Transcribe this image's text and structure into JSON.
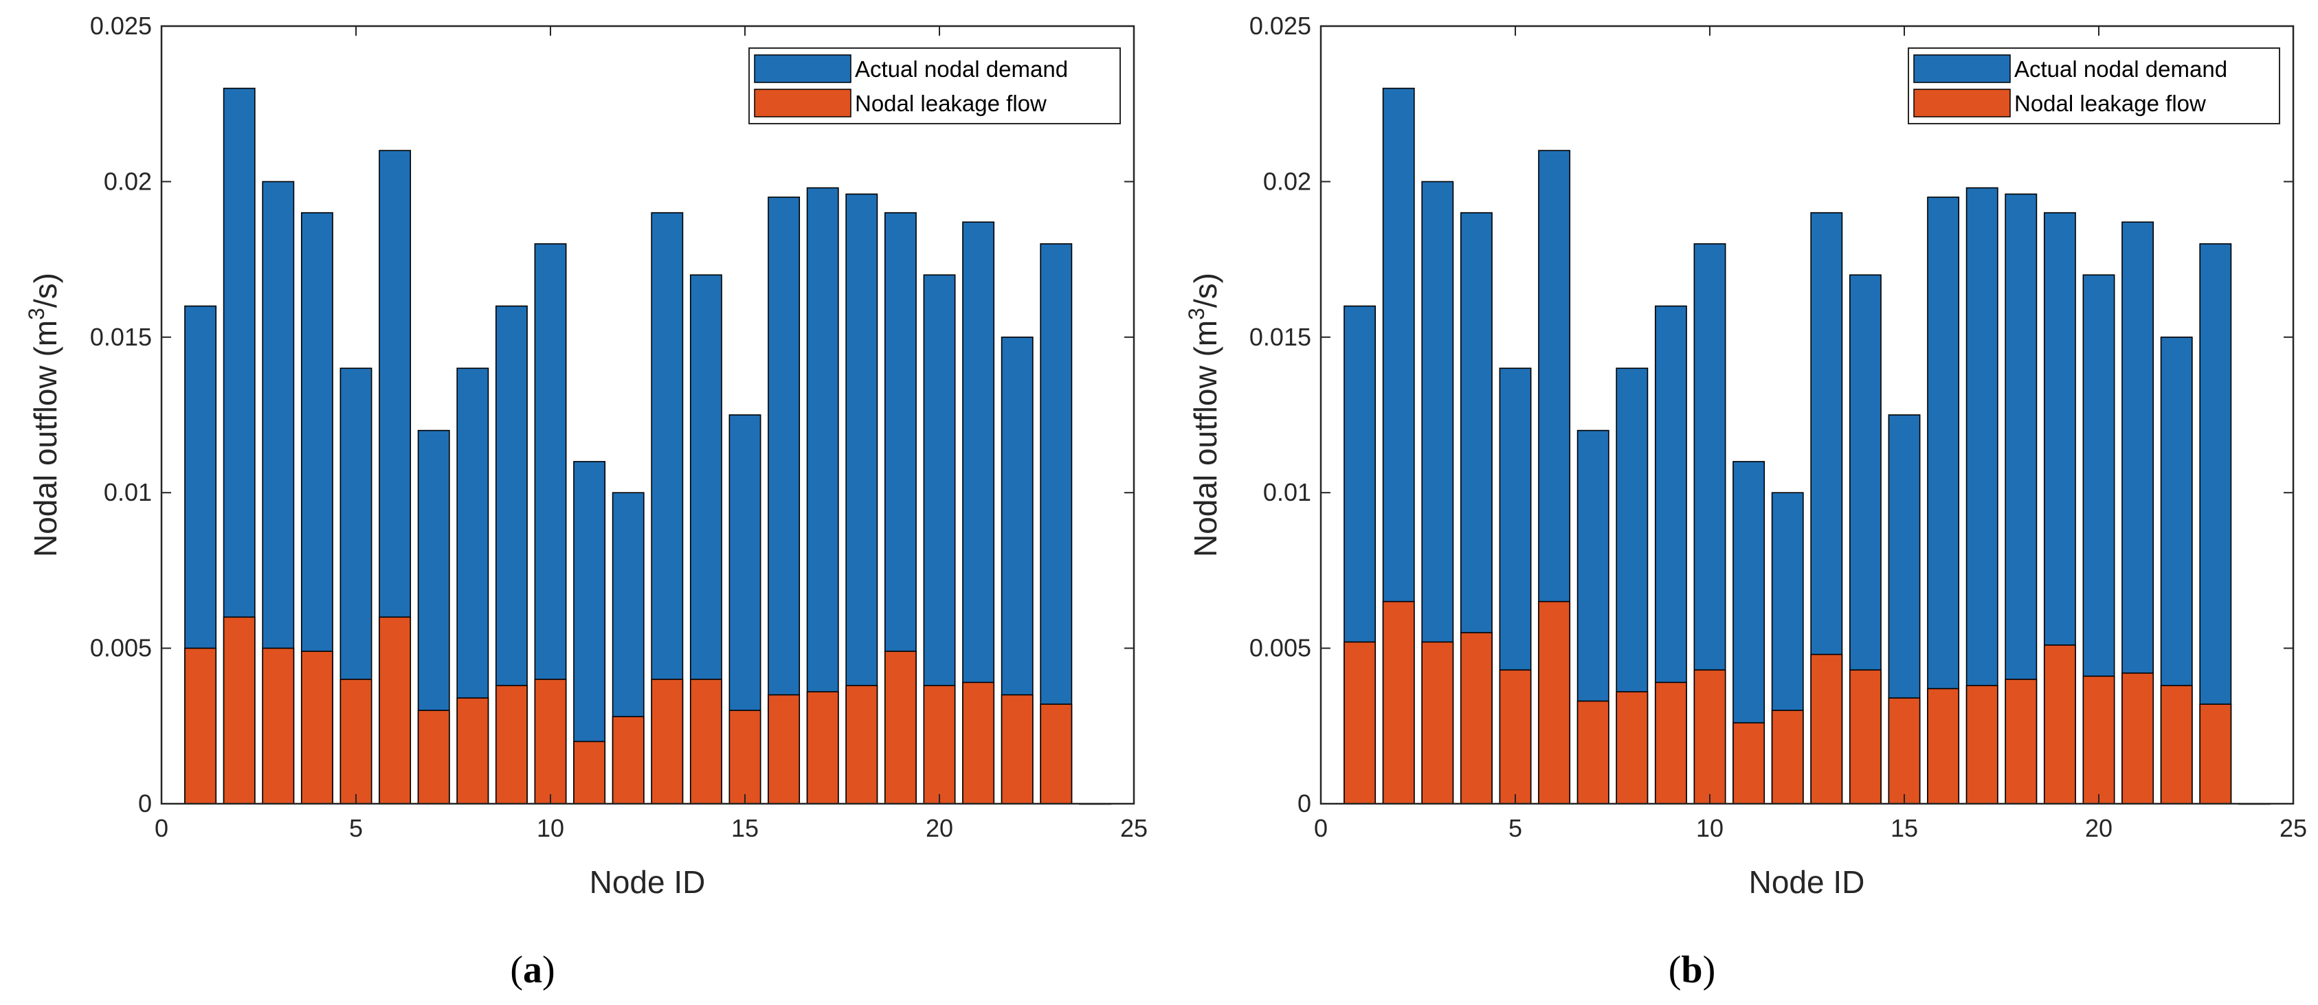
{
  "colors": {
    "demand": "#1f6fb5",
    "leakage": "#e0521f",
    "bar_edge": "#000000",
    "axes": "#262626"
  },
  "chart_data": [
    {
      "type": "bar",
      "panel": "(a)",
      "panel_paren_open": "(",
      "panel_letter": "a",
      "panel_paren_close": ")",
      "xlabel": "Node ID",
      "ylabel": "Nodal outflow (m",
      "ylabel_sup": "3",
      "ylabel_tail": "/s)",
      "xlim": [
        0,
        25
      ],
      "ylim": [
        0,
        0.025
      ],
      "xticks": [
        "0",
        "5",
        "10",
        "15",
        "20",
        "25"
      ],
      "yticks": [
        "0",
        "0.005",
        "0.01",
        "0.015",
        "0.02",
        "0.025"
      ],
      "legend_position": "top-right",
      "categories": [
        1,
        2,
        3,
        4,
        5,
        6,
        7,
        8,
        9,
        10,
        11,
        12,
        13,
        14,
        15,
        16,
        17,
        18,
        19,
        20,
        21,
        22,
        23,
        24
      ],
      "series": [
        {
          "name": "Actual nodal demand",
          "values": [
            0.016,
            0.023,
            0.02,
            0.019,
            0.014,
            0.021,
            0.012,
            0.014,
            0.016,
            0.018,
            0.011,
            0.01,
            0.019,
            0.017,
            0.0125,
            0.0195,
            0.0198,
            0.0196,
            0.019,
            0.017,
            0.0187,
            0.015,
            0.018,
            0.0
          ]
        },
        {
          "name": "Nodal leakage flow",
          "values": [
            0.005,
            0.006,
            0.005,
            0.0049,
            0.004,
            0.006,
            0.003,
            0.0034,
            0.0038,
            0.004,
            0.002,
            0.0028,
            0.004,
            0.004,
            0.003,
            0.0035,
            0.0036,
            0.0038,
            0.0049,
            0.0038,
            0.0039,
            0.0035,
            0.0032,
            0.0
          ]
        }
      ]
    },
    {
      "type": "bar",
      "panel": "(b)",
      "panel_paren_open": "(",
      "panel_letter": "b",
      "panel_paren_close": ")",
      "xlabel": "Node ID",
      "ylabel": "Nodal outflow (m",
      "ylabel_sup": "3",
      "ylabel_tail": "/s)",
      "xlim": [
        0,
        25
      ],
      "ylim": [
        0,
        0.025
      ],
      "xticks": [
        "0",
        "5",
        "10",
        "15",
        "20",
        "25"
      ],
      "yticks": [
        "0",
        "0.005",
        "0.01",
        "0.015",
        "0.02",
        "0.025"
      ],
      "legend_position": "top-right",
      "categories": [
        1,
        2,
        3,
        4,
        5,
        6,
        7,
        8,
        9,
        10,
        11,
        12,
        13,
        14,
        15,
        16,
        17,
        18,
        19,
        20,
        21,
        22,
        23,
        24
      ],
      "series": [
        {
          "name": "Actual nodal demand",
          "values": [
            0.016,
            0.023,
            0.02,
            0.019,
            0.014,
            0.021,
            0.012,
            0.014,
            0.016,
            0.018,
            0.011,
            0.01,
            0.019,
            0.017,
            0.0125,
            0.0195,
            0.0198,
            0.0196,
            0.019,
            0.017,
            0.0187,
            0.015,
            0.018,
            0.0
          ]
        },
        {
          "name": "Nodal leakage flow",
          "values": [
            0.0052,
            0.0065,
            0.0052,
            0.0055,
            0.0043,
            0.0065,
            0.0033,
            0.0036,
            0.0039,
            0.0043,
            0.0026,
            0.003,
            0.0048,
            0.0043,
            0.0034,
            0.0037,
            0.0038,
            0.004,
            0.0051,
            0.0041,
            0.0042,
            0.0038,
            0.0032,
            0.0
          ]
        }
      ]
    }
  ]
}
